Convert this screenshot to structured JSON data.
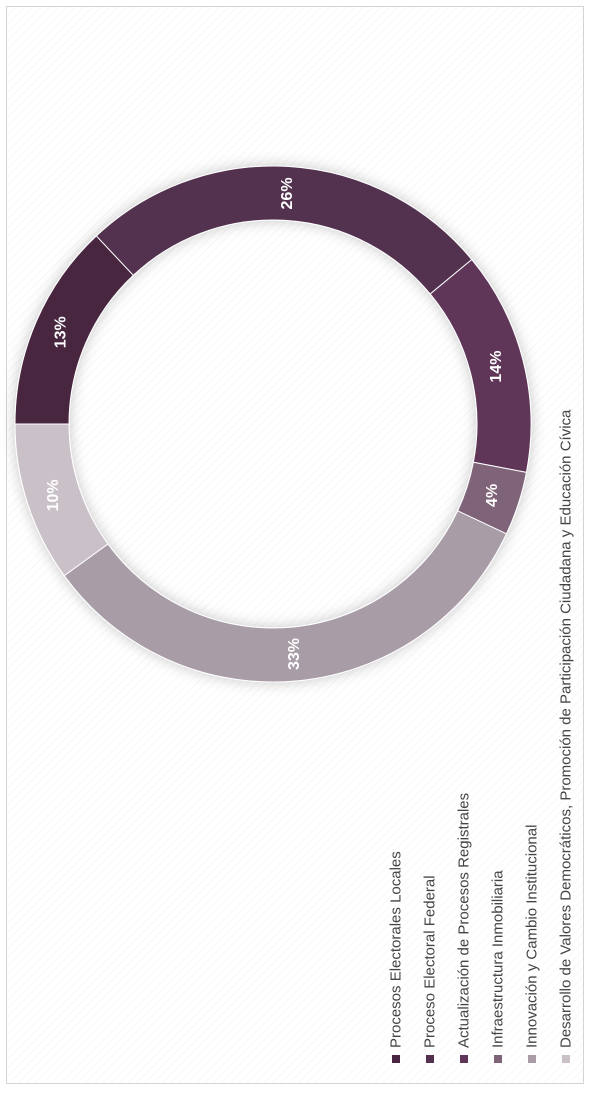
{
  "chart_data": {
    "type": "pie",
    "variant": "donut",
    "orientation": "rotated-90-ccw",
    "categories": [
      "Procesos Electorales Locales",
      "Proceso Electoral Federal",
      "Actualización de Procesos Registrales",
      "Infraestructura Inmobiliaria",
      "Innovación y Cambio Institucional",
      "Desarrollo de Valores Democráticos, Promoción de Participación Ciudadana y Educación Cívica"
    ],
    "values": [
      13,
      26,
      14,
      4,
      33,
      10
    ],
    "labels": [
      "13%",
      "26%",
      "14%",
      "4%",
      "33%",
      "10%"
    ],
    "colors": [
      "#482540",
      "#53304f",
      "#5f3559",
      "#7f6479",
      "#a89ca7",
      "#c9c0c8"
    ],
    "legend_position": "bottom"
  }
}
